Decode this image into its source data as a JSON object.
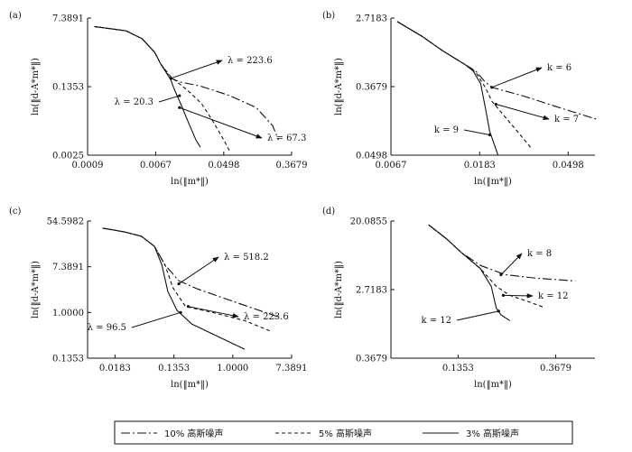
{
  "chart_data": [
    {
      "type": "line",
      "panel_label": "(a)",
      "xlabel": "ln(‖m*‖)",
      "ylabel": "ln(‖d-A*m*‖)",
      "x_ticks": [
        "0.0009",
        "0.0067",
        "0.0498",
        "0.3679"
      ],
      "y_ticks": [
        "0.0025",
        "0.1353",
        "7.3891"
      ],
      "series": [
        {
          "noise": "10%",
          "points": [
            [
              0.0011,
              4.5
            ],
            [
              0.0028,
              3.5
            ],
            [
              0.0045,
              2.2
            ],
            [
              0.0065,
              1.0
            ],
            [
              0.0078,
              0.5
            ],
            [
              0.0105,
              0.22
            ],
            [
              0.0135,
              0.18
            ],
            [
              0.025,
              0.14
            ],
            [
              0.06,
              0.08
            ],
            [
              0.13,
              0.04
            ],
            [
              0.21,
              0.014
            ],
            [
              0.25,
              0.006
            ]
          ]
        },
        {
          "noise": "5%",
          "points": [
            [
              0.0011,
              4.5
            ],
            [
              0.0028,
              3.5
            ],
            [
              0.0045,
              2.2
            ],
            [
              0.0065,
              1.0
            ],
            [
              0.0078,
              0.5
            ],
            [
              0.0105,
              0.24
            ],
            [
              0.0135,
              0.16
            ],
            [
              0.018,
              0.1
            ],
            [
              0.026,
              0.05
            ],
            [
              0.035,
              0.02
            ],
            [
              0.05,
              0.006
            ],
            [
              0.06,
              0.003
            ]
          ]
        },
        {
          "noise": "3%",
          "points": [
            [
              0.0011,
              4.5
            ],
            [
              0.0028,
              3.5
            ],
            [
              0.0045,
              2.2
            ],
            [
              0.0065,
              1.0
            ],
            [
              0.0078,
              0.5
            ],
            [
              0.0105,
              0.2
            ],
            [
              0.0115,
              0.12
            ],
            [
              0.014,
              0.05
            ],
            [
              0.018,
              0.015
            ],
            [
              0.022,
              0.006
            ],
            [
              0.025,
              0.004
            ]
          ]
        }
      ],
      "annotations": [
        {
          "text": "λ = 223.6",
          "x": 0.0105,
          "y": 0.22
        },
        {
          "text": "λ = 20.3",
          "x": 0.0135,
          "y": 0.08
        },
        {
          "text": "λ = 67.3",
          "x": 0.0135,
          "y": 0.04
        }
      ]
    },
    {
      "type": "line",
      "panel_label": "(b)",
      "xlabel": "ln(‖m*‖)",
      "ylabel": "ln(‖d-A*m*‖)",
      "x_ticks": [
        "0.0067",
        "0.0183",
        "0.0498"
      ],
      "y_ticks": [
        "0.0498",
        "0.3679",
        "2.7183"
      ],
      "series": [
        {
          "noise": "10%",
          "points": [
            [
              0.0072,
              2.45
            ],
            [
              0.0095,
              1.6
            ],
            [
              0.012,
              1.05
            ],
            [
              0.0155,
              0.7
            ],
            [
              0.0175,
              0.58
            ],
            [
              0.0195,
              0.42
            ],
            [
              0.021,
              0.36
            ],
            [
              0.03,
              0.28
            ],
            [
              0.045,
              0.2
            ],
            [
              0.07,
              0.14
            ]
          ]
        },
        {
          "noise": "5%",
          "points": [
            [
              0.0072,
              2.45
            ],
            [
              0.0095,
              1.6
            ],
            [
              0.012,
              1.05
            ],
            [
              0.0155,
              0.7
            ],
            [
              0.0175,
              0.56
            ],
            [
              0.0195,
              0.36
            ],
            [
              0.021,
              0.24
            ],
            [
              0.024,
              0.16
            ],
            [
              0.028,
              0.1
            ],
            [
              0.033,
              0.06
            ]
          ]
        },
        {
          "noise": "3%",
          "points": [
            [
              0.0072,
              2.45
            ],
            [
              0.0095,
              1.6
            ],
            [
              0.012,
              1.05
            ],
            [
              0.0155,
              0.7
            ],
            [
              0.017,
              0.58
            ],
            [
              0.0185,
              0.4
            ],
            [
              0.0195,
              0.2
            ],
            [
              0.0205,
              0.1
            ],
            [
              0.0215,
              0.07
            ],
            [
              0.0225,
              0.05
            ]
          ]
        }
      ],
      "annotations": [
        {
          "text": "k = 6",
          "x": 0.021,
          "y": 0.36
        },
        {
          "text": "k = 7",
          "x": 0.022,
          "y": 0.22
        },
        {
          "text": "k = 9",
          "x": 0.0205,
          "y": 0.09
        }
      ]
    },
    {
      "type": "line",
      "panel_label": "(c)",
      "xlabel": "ln(‖m*‖)",
      "ylabel": "ln(‖d-A*m*‖)",
      "x_ticks": [
        "0.0183",
        "0.1353",
        "1.0000",
        "7.3891"
      ],
      "y_ticks": [
        "0.1353",
        "1.0000",
        "7.3891",
        "54.5982"
      ],
      "series": [
        {
          "noise": "10%",
          "points": [
            [
              0.012,
              40
            ],
            [
              0.025,
              34
            ],
            [
              0.045,
              28
            ],
            [
              0.07,
              18
            ],
            [
              0.1,
              8
            ],
            [
              0.16,
              4
            ],
            [
              0.3,
              2.8
            ],
            [
              0.8,
              1.8
            ],
            [
              2,
              1.2
            ],
            [
              5,
              0.8
            ]
          ]
        },
        {
          "noise": "5%",
          "points": [
            [
              0.012,
              40
            ],
            [
              0.025,
              34
            ],
            [
              0.045,
              28
            ],
            [
              0.07,
              18
            ],
            [
              0.1,
              8
            ],
            [
              0.13,
              3
            ],
            [
              0.2,
              1.3
            ],
            [
              0.5,
              1.0
            ],
            [
              1.5,
              0.7
            ],
            [
              3.5,
              0.45
            ]
          ]
        },
        {
          "noise": "3%",
          "points": [
            [
              0.012,
              40
            ],
            [
              0.025,
              34
            ],
            [
              0.045,
              28
            ],
            [
              0.07,
              18
            ],
            [
              0.09,
              8
            ],
            [
              0.11,
              2.5
            ],
            [
              0.15,
              1.1
            ],
            [
              0.25,
              0.6
            ],
            [
              0.6,
              0.35
            ],
            [
              1.5,
              0.2
            ]
          ]
        }
      ],
      "annotations": [
        {
          "text": "λ = 518.2",
          "x": 0.16,
          "y": 3.5
        },
        {
          "text": "λ = 223.6",
          "x": 0.22,
          "y": 1.3
        },
        {
          "text": "λ = 96.5",
          "x": 0.17,
          "y": 1.0
        }
      ]
    },
    {
      "type": "line",
      "panel_label": "(d)",
      "xlabel": "ln(‖m*‖)",
      "ylabel": "ln(‖d-A*m*‖)",
      "x_ticks": [
        "0.1353",
        "0.3679"
      ],
      "y_ticks": [
        "0.3679",
        "2.7183",
        "20.0855"
      ],
      "series": [
        {
          "noise": "10%",
          "points": [
            [
              0.1,
              18
            ],
            [
              0.12,
              12
            ],
            [
              0.14,
              8
            ],
            [
              0.17,
              5.5
            ],
            [
              0.22,
              4.2
            ],
            [
              0.3,
              3.8
            ],
            [
              0.45,
              3.5
            ]
          ]
        },
        {
          "noise": "5%",
          "points": [
            [
              0.1,
              18
            ],
            [
              0.12,
              12
            ],
            [
              0.14,
              8
            ],
            [
              0.17,
              5
            ],
            [
              0.2,
              3
            ],
            [
              0.23,
              2.3
            ],
            [
              0.28,
              1.9
            ],
            [
              0.33,
              1.6
            ]
          ]
        },
        {
          "noise": "3%",
          "points": [
            [
              0.1,
              18
            ],
            [
              0.12,
              12
            ],
            [
              0.14,
              8
            ],
            [
              0.17,
              5
            ],
            [
              0.19,
              3
            ],
            [
              0.2,
              1.6
            ],
            [
              0.21,
              1.3
            ],
            [
              0.23,
              1.1
            ]
          ]
        }
      ],
      "annotations": [
        {
          "text": "k = 8",
          "x": 0.21,
          "y": 4.2
        },
        {
          "text": "k = 12",
          "x": 0.215,
          "y": 2.3
        },
        {
          "text": "k = 12",
          "x": 0.205,
          "y": 1.45
        }
      ]
    }
  ],
  "legend": {
    "items": [
      {
        "label": "10% 高斯噪声",
        "style": "dashdot"
      },
      {
        "label": "5% 高斯噪声",
        "style": "dashed"
      },
      {
        "label": "3% 高斯噪声",
        "style": "solid"
      }
    ]
  }
}
